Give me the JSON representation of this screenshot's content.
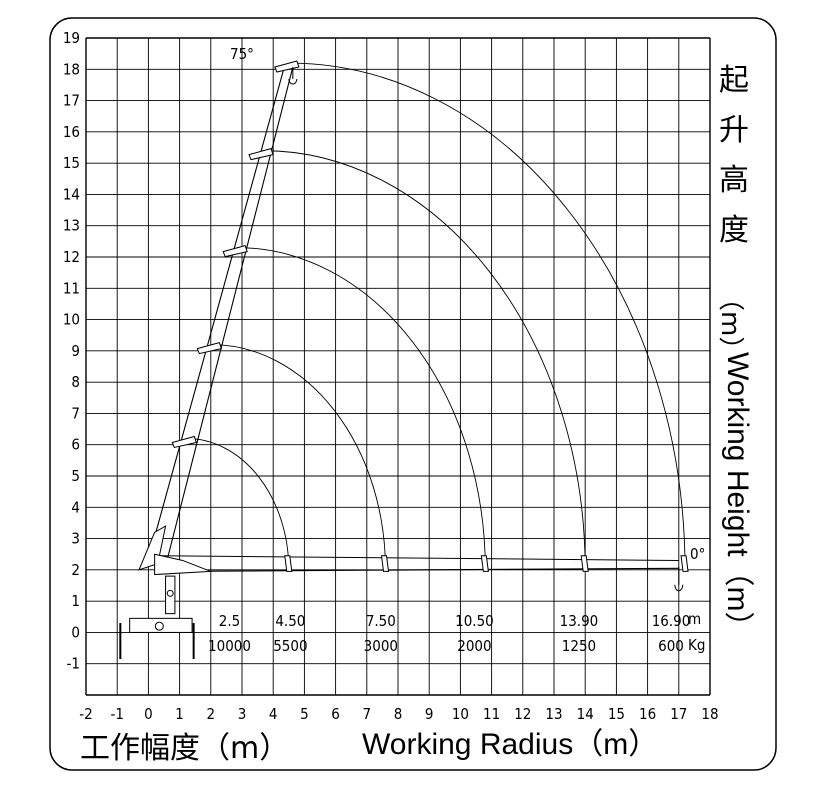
{
  "chart_data": {
    "type": "load_chart",
    "x_axis": {
      "ticks": [
        "-2",
        "-1",
        "0",
        "1",
        "2",
        "3",
        "4",
        "5",
        "6",
        "7",
        "8",
        "9",
        "10",
        "11",
        "12",
        "13",
        "14",
        "15",
        "16",
        "17",
        "18"
      ],
      "range": [
        -2,
        18
      ]
    },
    "y_axis": {
      "ticks": [
        "-1",
        "0",
        "1",
        "2",
        "3",
        "4",
        "5",
        "6",
        "7",
        "8",
        "9",
        "10",
        "11",
        "12",
        "13",
        "14",
        "15",
        "16",
        "17",
        "18",
        "19"
      ],
      "range": [
        -2,
        19
      ]
    },
    "x_label_cn": "工作幅度（m）",
    "x_label_en": "Working Radius（m）",
    "y_label_cn": [
      "起",
      "升",
      "高",
      "度",
      "（m）"
    ],
    "y_label_en": "Working Height（m）",
    "angle_top": "75°",
    "angle_bottom": "0°",
    "radius_unit": "m",
    "load_unit": "Kg",
    "radii": [
      "2.5",
      "4.50",
      "7.50",
      "10.50",
      "13.90",
      "16.90"
    ],
    "loads": [
      "10000",
      "5500",
      "3000",
      "2000",
      "1250",
      "600"
    ],
    "boom_sections": [
      {
        "tip_height": 6.2,
        "reach": 4.5
      },
      {
        "tip_height": 9.2,
        "reach": 7.6
      },
      {
        "tip_height": 12.3,
        "reach": 10.8
      },
      {
        "tip_height": 15.4,
        "reach": 14.0
      },
      {
        "tip_height": 18.2,
        "reach": 17.2
      }
    ]
  }
}
